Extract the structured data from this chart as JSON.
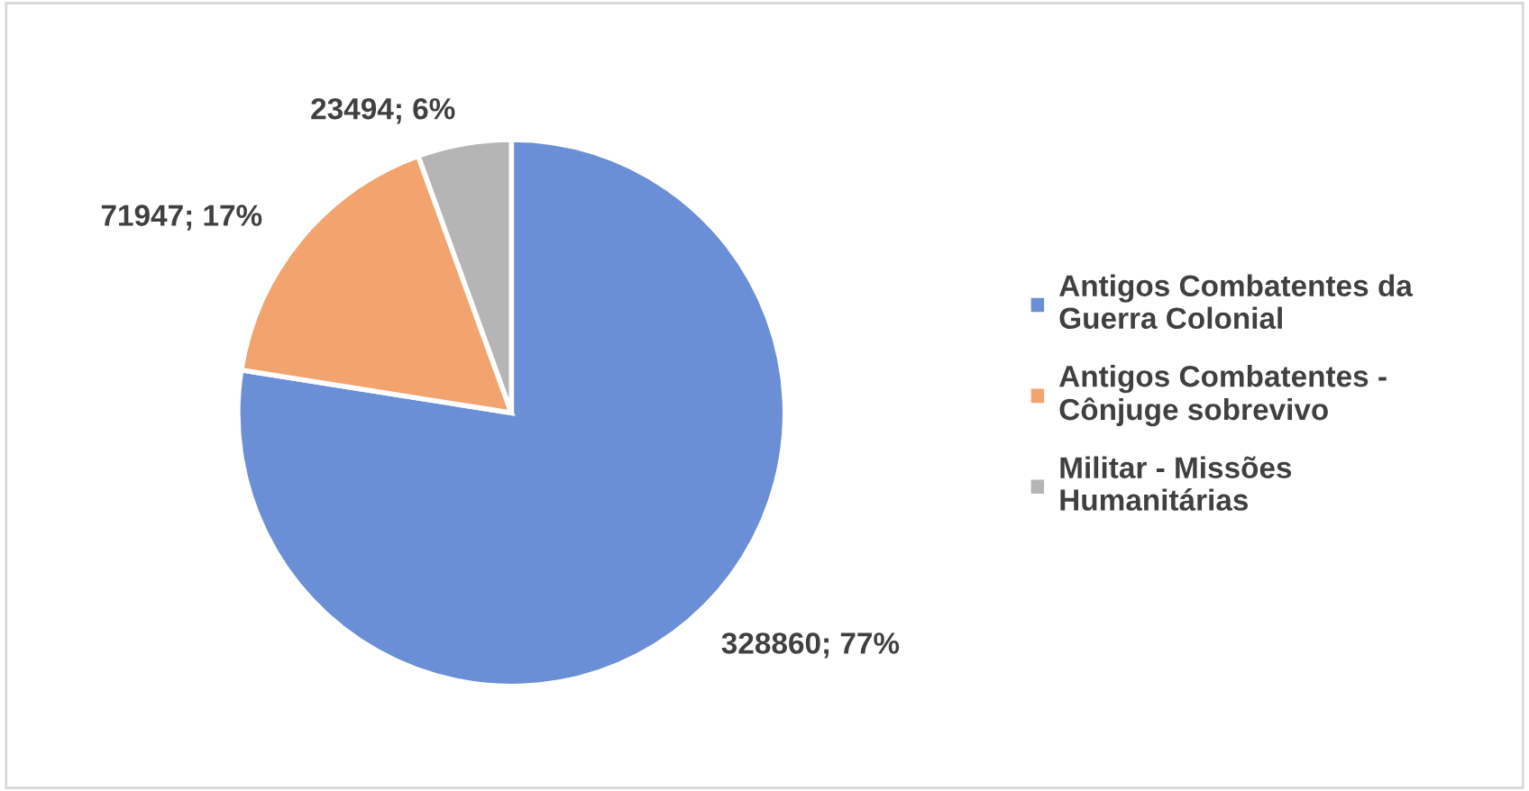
{
  "chart_data": {
    "type": "pie",
    "categories": [
      "Antigos Combatentes da Guerra Colonial",
      "Antigos Combatentes - Cônjuge sobrevivo",
      "Militar - Missões Humanitárias"
    ],
    "values": [
      328860,
      71947,
      23494
    ],
    "colors": [
      "#6a8fd6",
      "#f2a36e",
      "#b5b5b5"
    ],
    "value_labels": [
      "328860; 77%",
      "71947; 17%",
      "23494; 6%"
    ],
    "legend": "right"
  }
}
